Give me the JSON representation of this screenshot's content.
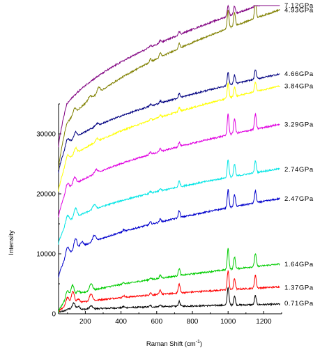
{
  "chart_data": {
    "type": "line",
    "title": "",
    "xlabel": "Raman Shift (cm",
    "xlabel_sup": "-1",
    "xlabel_end": ")",
    "ylabel": "Intensity",
    "xlim": [
      50,
      1300
    ],
    "ylim": [
      0,
      35000
    ],
    "x_ticks": [
      200,
      400,
      600,
      800,
      1000,
      1200
    ],
    "y_ticks": [
      0,
      10000,
      20000,
      30000
    ],
    "x_tick_labels": [
      "200",
      "400",
      "600",
      "800",
      "1000",
      "1200"
    ],
    "y_tick_labels": [
      "0",
      "10000",
      "20000",
      "30000"
    ],
    "grid": false,
    "legend": "inline labels at right end of each series",
    "series": [
      {
        "name": "0.71GPa",
        "color": "#000000",
        "start": 400,
        "end": 1600,
        "peak_scale": 1.0,
        "peaks": [
          [
            108,
            200
          ],
          [
            135,
            1100
          ],
          [
            162,
            500
          ],
          [
            232,
            500
          ],
          [
            415,
            200
          ],
          [
            565,
            250
          ],
          [
            620,
            300
          ],
          [
            726,
            800
          ],
          [
            1000,
            3000
          ],
          [
            1036,
            1500
          ],
          [
            1153,
            1500
          ]
        ]
      },
      {
        "name": "1.37GPa",
        "color": "#ff0000",
        "start": 900,
        "end": 4500,
        "peak_scale": 1.0,
        "peaks": [
          [
            100,
            1200
          ],
          [
            130,
            2000
          ],
          [
            160,
            600
          ],
          [
            232,
            1200
          ],
          [
            415,
            300
          ],
          [
            565,
            400
          ],
          [
            620,
            700
          ],
          [
            726,
            1500
          ],
          [
            1000,
            3200
          ],
          [
            1036,
            1800
          ],
          [
            1153,
            2200
          ]
        ]
      },
      {
        "name": "1.64GPa",
        "color": "#00cc00",
        "start": 1500,
        "end": 8300,
        "peak_scale": 1.0,
        "peaks": [
          [
            100,
            1200
          ],
          [
            128,
            1800
          ],
          [
            160,
            500
          ],
          [
            232,
            1200
          ],
          [
            415,
            300
          ],
          [
            565,
            300
          ],
          [
            620,
            500
          ],
          [
            726,
            1200
          ],
          [
            1000,
            3500
          ],
          [
            1036,
            2000
          ],
          [
            1153,
            2200
          ]
        ]
      },
      {
        "name": "2.47GPa",
        "color": "#0000cc",
        "start": 8000,
        "end": 19200,
        "peak_scale": 1.0,
        "peaks": [
          [
            100,
            1200
          ],
          [
            145,
            1800
          ],
          [
            180,
            800
          ],
          [
            250,
            1000
          ],
          [
            415,
            300
          ],
          [
            565,
            400
          ],
          [
            620,
            500
          ],
          [
            726,
            1200
          ],
          [
            1000,
            3000
          ],
          [
            1036,
            2000
          ],
          [
            1153,
            2000
          ]
        ]
      },
      {
        "name": "2.74GPa",
        "color": "#00e5e5",
        "start": 13500,
        "end": 24200,
        "peak_scale": 1.0,
        "peaks": [
          [
            100,
            1000
          ],
          [
            145,
            1500
          ],
          [
            250,
            800
          ],
          [
            565,
            300
          ],
          [
            620,
            400
          ],
          [
            726,
            1000
          ],
          [
            1000,
            3000
          ],
          [
            1036,
            2000
          ],
          [
            1153,
            2000
          ]
        ]
      },
      {
        "name": "3.29GPa",
        "color": "#e000e0",
        "start": 18500,
        "end": 31600,
        "peak_scale": 1.0,
        "peaks": [
          [
            100,
            1000
          ],
          [
            140,
            1200
          ],
          [
            260,
            600
          ],
          [
            565,
            400
          ],
          [
            620,
            500
          ],
          [
            726,
            700
          ],
          [
            1000,
            3500
          ],
          [
            1036,
            2500
          ],
          [
            1153,
            2500
          ]
        ]
      },
      {
        "name": "3.84GPa",
        "color": "#ffff00",
        "start": 23000,
        "end": 38000,
        "peak_scale": 1.0,
        "peaks": [
          [
            100,
            900
          ],
          [
            145,
            1000
          ],
          [
            265,
            500
          ],
          [
            565,
            300
          ],
          [
            620,
            400
          ],
          [
            726,
            600
          ],
          [
            1000,
            2500
          ],
          [
            1036,
            1600
          ],
          [
            1153,
            1600
          ]
        ]
      },
      {
        "name": "4.66GPa",
        "color": "#000080",
        "start": 26000,
        "end": 40000,
        "peak_scale": 1.0,
        "peaks": [
          [
            100,
            800
          ],
          [
            145,
            900
          ],
          [
            265,
            400
          ],
          [
            565,
            300
          ],
          [
            620,
            400
          ],
          [
            726,
            700
          ],
          [
            1000,
            2200
          ],
          [
            1036,
            1500
          ],
          [
            1153,
            1600
          ]
        ]
      },
      {
        "name": "4.93GPa",
        "color": "#808000",
        "start": 28000,
        "end": 50700,
        "peak_scale": 1.0,
        "peaks": [
          [
            140,
            900
          ],
          [
            225,
            600
          ],
          [
            275,
            900
          ],
          [
            565,
            500
          ],
          [
            620,
            700
          ],
          [
            726,
            800
          ],
          [
            1000,
            3000
          ],
          [
            1036,
            2200
          ],
          [
            1153,
            2800
          ]
        ]
      },
      {
        "name": "7.12GPa",
        "color": "#800080",
        "start": 31500,
        "end": 52500,
        "peak_scale": 1.0,
        "peaks": [
          [
            565,
            300
          ],
          [
            620,
            400
          ],
          [
            726,
            500
          ],
          [
            1000,
            1800
          ],
          [
            1036,
            1300
          ],
          [
            1153,
            1500
          ]
        ]
      }
    ]
  }
}
